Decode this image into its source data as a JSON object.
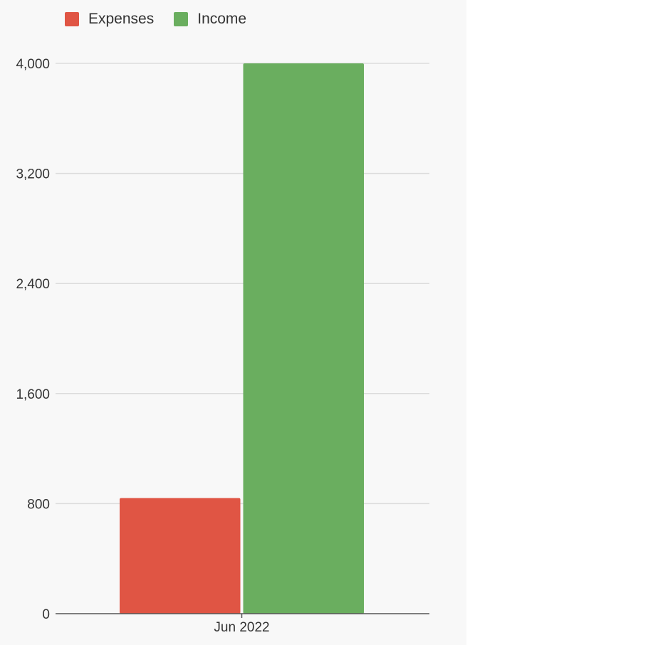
{
  "chart_data": {
    "type": "bar",
    "categories": [
      "Jun 2022"
    ],
    "series": [
      {
        "name": "Expenses",
        "values": [
          840
        ],
        "color": "#e05544"
      },
      {
        "name": "Income",
        "values": [
          4000
        ],
        "color": "#6aae5f"
      }
    ],
    "ylim": [
      0,
      4000
    ],
    "yticks": [
      0,
      800,
      1600,
      2400,
      3200,
      4000
    ],
    "ytick_labels": [
      "0",
      "800",
      "1,600",
      "2,400",
      "3,200",
      "4,000"
    ],
    "grid": true,
    "legend_position": "top-left"
  }
}
